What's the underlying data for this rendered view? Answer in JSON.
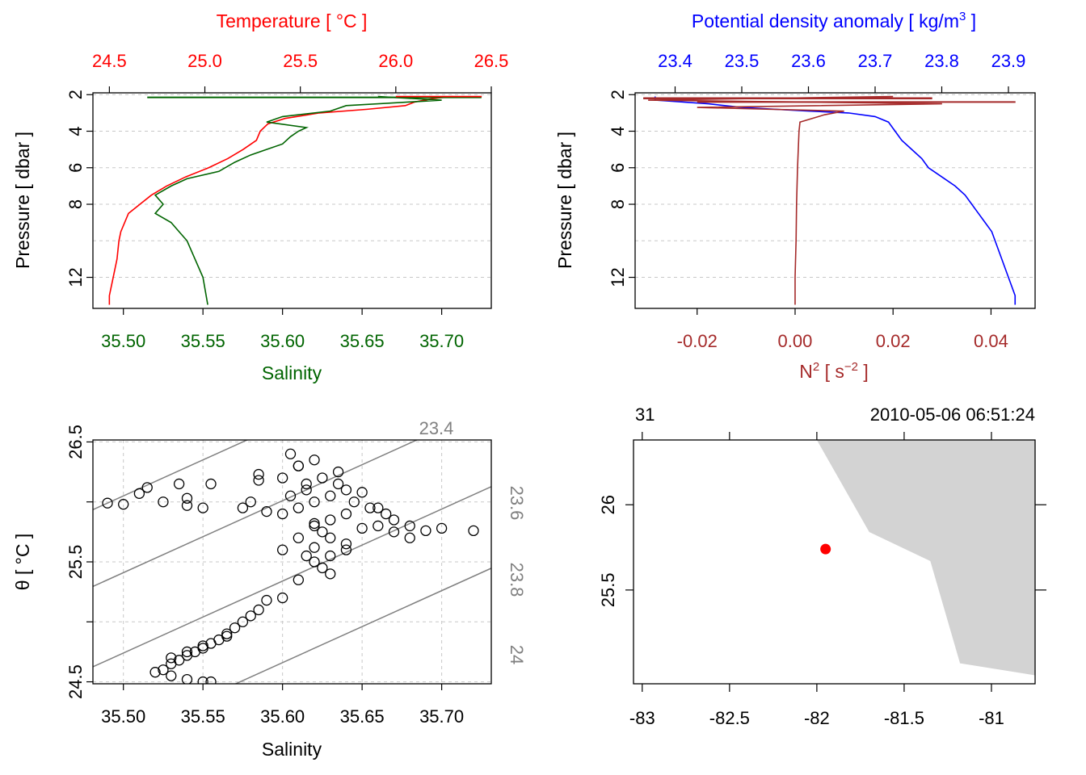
{
  "chart_data": [
    {
      "type": "line",
      "panel": "profile-ts",
      "xlabel_top": "Temperature [ °C ]",
      "xlabel_bottom": "Salinity",
      "ylabel": "Pressure [ dbar ]",
      "temperature_ticks": [
        "24.5",
        "25.0",
        "25.5",
        "26.0",
        "26.5"
      ],
      "salinity_ticks": [
        "35.50",
        "35.55",
        "35.60",
        "35.65",
        "35.70"
      ],
      "pressure_ticks": [
        "2",
        "4",
        "6",
        "8",
        "12"
      ],
      "temperature_range": [
        24.49,
        26.5
      ],
      "salinity_range": [
        35.49,
        35.72
      ],
      "pressure_range": [
        1.9,
        13.7
      ],
      "colors": {
        "temperature": "#ff0000",
        "salinity": "#006400"
      },
      "series": [
        {
          "name": "Temperature",
          "pressure": [
            2.1,
            2.2,
            2.4,
            2.6,
            2.8,
            3.0,
            3.3,
            3.6,
            4.0,
            4.5,
            5.0,
            5.5,
            6.0,
            6.5,
            7.0,
            7.5,
            8.0,
            8.5,
            9.0,
            9.5,
            10.0,
            11.0,
            12.0,
            13.0,
            13.5
          ],
          "values": [
            26.3,
            26.2,
            26.1,
            26.05,
            25.85,
            25.6,
            25.42,
            25.33,
            25.29,
            25.27,
            25.2,
            25.12,
            25.02,
            24.9,
            24.8,
            24.72,
            24.66,
            24.6,
            24.58,
            24.56,
            24.55,
            24.54,
            24.52,
            24.5,
            24.5
          ]
        },
        {
          "name": "Salinity",
          "pressure": [
            2.1,
            2.3,
            2.6,
            2.9,
            3.2,
            3.5,
            3.8,
            4.0,
            4.3,
            4.7,
            5.0,
            5.3,
            5.7,
            6.2,
            6.6,
            7.0,
            7.5,
            8.0,
            8.5,
            9.0,
            9.5,
            10.0,
            11.0,
            12.0,
            13.0,
            13.5
          ],
          "values": [
            35.66,
            35.7,
            35.64,
            35.63,
            35.6,
            35.59,
            35.615,
            35.61,
            35.605,
            35.6,
            35.59,
            35.58,
            35.57,
            35.56,
            35.54,
            35.53,
            35.52,
            35.525,
            35.52,
            35.53,
            35.535,
            35.54,
            35.545,
            35.55,
            35.552,
            35.553
          ]
        }
      ]
    },
    {
      "type": "line",
      "panel": "profile-density",
      "xlabel_top": "Potential density anomaly [ kg/m",
      "xlabel_top_sup": "3",
      "xlabel_top_end": " ]",
      "xlabel_bottom": "N",
      "xlabel_bottom_sup": "2",
      "xlabel_bottom_mid": " [ s",
      "xlabel_bottom_sup2": "−2",
      "xlabel_bottom_end": " ]",
      "ylabel": "Pressure [ dbar ]",
      "sigma_ticks": [
        "23.4",
        "23.5",
        "23.6",
        "23.7",
        "23.8",
        "23.9"
      ],
      "n2_ticks": [
        "-0.02",
        "0.00",
        "0.02",
        "0.04"
      ],
      "pressure_ticks": [
        "2",
        "4",
        "6",
        "8",
        "12"
      ],
      "sigma_range": [
        23.34,
        23.94
      ],
      "n2_range": [
        -0.032,
        0.049
      ],
      "pressure_range": [
        1.9,
        13.7
      ],
      "colors": {
        "sigma": "#0000ff",
        "n2": "#a52a2a"
      },
      "series": [
        {
          "name": "sigmaTheta",
          "pressure": [
            2.1,
            2.3,
            2.5,
            2.7,
            2.9,
            3.0,
            3.2,
            3.5,
            4.0,
            4.5,
            5.0,
            5.5,
            6.0,
            6.5,
            7.0,
            7.5,
            8.0,
            8.5,
            9.0,
            9.5,
            10.0,
            11.0,
            12.0,
            13.0,
            13.5
          ],
          "values": [
            23.37,
            23.37,
            23.45,
            23.5,
            23.6,
            23.66,
            23.7,
            23.72,
            23.73,
            23.74,
            23.755,
            23.77,
            23.78,
            23.8,
            23.82,
            23.835,
            23.845,
            23.855,
            23.865,
            23.875,
            23.88,
            23.89,
            23.9,
            23.91,
            23.91
          ]
        },
        {
          "name": "N2",
          "pressure": [
            2.1,
            2.3,
            2.5,
            2.7,
            2.9,
            3.1,
            3.5,
            4.0,
            6.0,
            8.0,
            10.0,
            12.0,
            13.0,
            13.5
          ],
          "values": [
            0.02,
            -0.03,
            0.03,
            -0.02,
            0.01,
            0.006,
            0.001,
            0.0008,
            0.0005,
            0.0003,
            0.0002,
            0.0,
            0.0,
            0.0
          ]
        }
      ]
    },
    {
      "type": "scatter",
      "panel": "ts-diagram",
      "xlabel": "Salinity",
      "ylabel": "θ [ °C ]",
      "x_ticks": [
        "35.50",
        "35.55",
        "35.60",
        "35.65",
        "35.70"
      ],
      "y_ticks": [
        "24.5",
        "25.5",
        "26.5"
      ],
      "x_range": [
        35.49,
        35.72
      ],
      "y_range": [
        24.45,
        26.55
      ],
      "isopycnal_labels": [
        "23.4",
        "23.6",
        "23.8",
        "24"
      ],
      "isopycnal_color": "#808080",
      "points": {
        "S": [
          35.49,
          35.5,
          35.51,
          35.515,
          35.525,
          35.535,
          35.54,
          35.54,
          35.55,
          35.555,
          35.575,
          35.58,
          35.585,
          35.585,
          35.59,
          35.6,
          35.61,
          35.62,
          35.63,
          35.64,
          35.65,
          35.66,
          35.67,
          35.68,
          35.69,
          35.7,
          35.72,
          35.6,
          35.61,
          35.62,
          35.63,
          35.64,
          35.61,
          35.62,
          35.635,
          35.6,
          35.605,
          35.61,
          35.615,
          35.62,
          35.625,
          35.63,
          35.64,
          35.615,
          35.62,
          35.625,
          35.63,
          35.61,
          35.6,
          35.59,
          35.585,
          35.58,
          35.575,
          35.57,
          35.565,
          35.56,
          35.555,
          35.55,
          35.545,
          35.54,
          35.535,
          35.53,
          35.525,
          35.52,
          35.53,
          35.54,
          35.55,
          35.555,
          35.53,
          35.54,
          35.55,
          35.565,
          35.62,
          35.63,
          35.64,
          35.65,
          35.66,
          35.67,
          35.68,
          35.605,
          35.615,
          35.625,
          35.635,
          35.645,
          35.655,
          35.665
        ],
        "T": [
          25.99,
          25.98,
          26.07,
          26.12,
          26.0,
          26.15,
          26.03,
          25.97,
          25.95,
          26.15,
          25.95,
          26.0,
          26.18,
          26.23,
          25.92,
          25.9,
          25.95,
          26.0,
          26.05,
          26.1,
          26.08,
          25.95,
          25.85,
          25.8,
          25.76,
          25.78,
          25.76,
          25.6,
          25.7,
          25.62,
          25.55,
          25.65,
          26.3,
          26.35,
          26.25,
          26.2,
          26.4,
          26.3,
          26.15,
          25.82,
          25.75,
          25.7,
          25.6,
          25.55,
          25.5,
          25.45,
          25.4,
          25.35,
          25.2,
          25.18,
          25.1,
          25.05,
          25.0,
          24.95,
          24.9,
          24.85,
          24.82,
          24.78,
          24.75,
          24.72,
          24.68,
          24.65,
          24.6,
          24.58,
          24.55,
          24.52,
          24.5,
          24.5,
          24.7,
          24.75,
          24.8,
          24.88,
          25.8,
          25.85,
          25.9,
          25.78,
          25.8,
          25.75,
          25.7,
          26.05,
          26.1,
          26.2,
          26.15,
          26.0,
          25.95,
          25.9
        ]
      }
    },
    {
      "type": "map",
      "panel": "station-map",
      "top_left_label": "31",
      "top_right_label": "2010-05-06 06:51:24",
      "lon_ticks": [
        "-83",
        "-82.5",
        "-82",
        "-81.5",
        "-81"
      ],
      "lat_ticks": [
        "26",
        "25.5"
      ],
      "lon_range": [
        -83.05,
        -80.75
      ],
      "lat_range": [
        24.95,
        26.38
      ],
      "station": {
        "lon": -81.95,
        "lat": 25.74
      },
      "station_color": "#ff0000",
      "land_color": "#d3d3d3",
      "coastline": {
        "lon": [
          -82.0,
          -81.7,
          -81.35,
          -81.18,
          -80.75,
          -80.75
        ],
        "lat": [
          26.38,
          25.84,
          25.67,
          25.07,
          25.0,
          26.38
        ]
      }
    }
  ]
}
